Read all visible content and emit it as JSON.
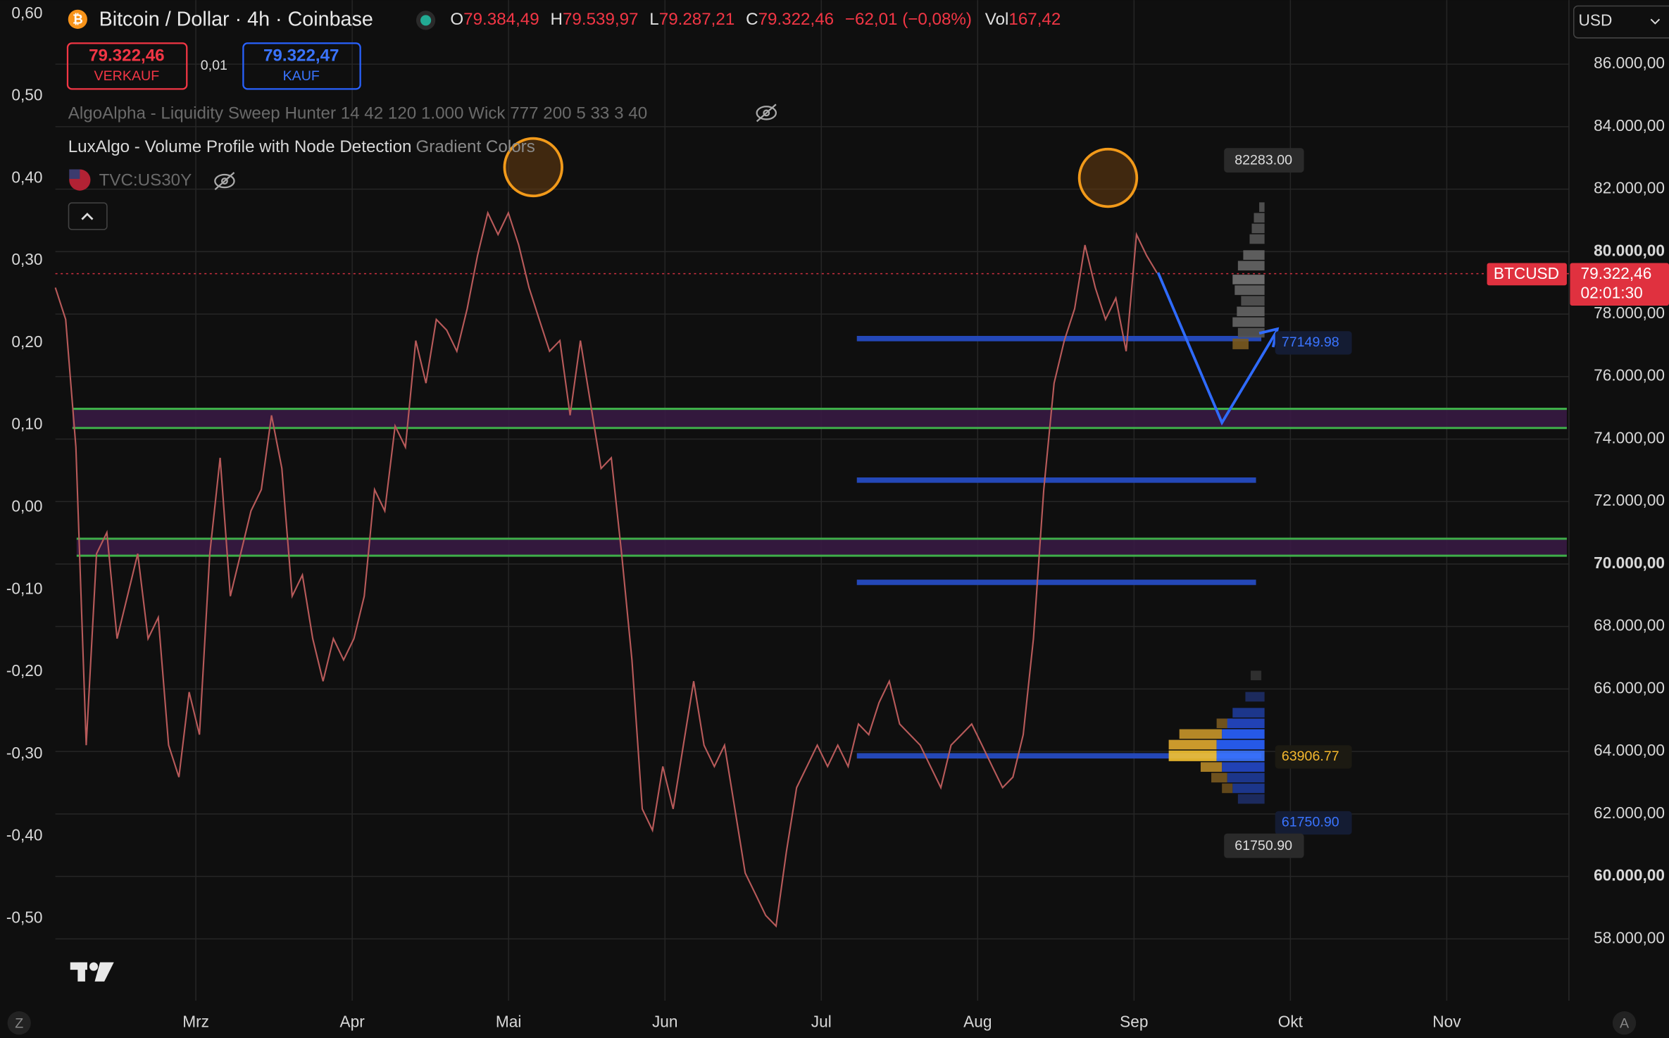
{
  "header": {
    "symbol": "Bitcoin / Dollar · 4h · Coinbase",
    "ohlc": [
      {
        "key": "O",
        "value": "79.384,49"
      },
      {
        "key": "H",
        "value": "79.539,97"
      },
      {
        "key": "L",
        "value": "79.287,21"
      },
      {
        "key": "C",
        "value": "79.322,46"
      }
    ],
    "change": "−62,01 (−0,08%)",
    "vol_label": "Vol",
    "vol": "167,42"
  },
  "trade": {
    "sell_price": "79.322,46",
    "sell_label": "VERKAUF",
    "spread": "0,01",
    "buy_price": "79.322,47",
    "buy_label": "KAUF"
  },
  "indicators": {
    "algoalpha": "AlgoAlpha - Liquidity Sweep Hunter 14 42 120 1.000 Wick 777 200 5 33 3 40",
    "luxalgo": "LuxAlgo - Volume Profile with Node Detection",
    "luxalgo_setting": "Gradient Colors",
    "compare": "TVC:US30Y"
  },
  "currency": "USD",
  "price_axis": {
    "ylim": [
      56000,
      88000
    ],
    "yticks": [
      {
        "value": 58000,
        "label": "58.000,00"
      },
      {
        "value": 60000,
        "label": "60.000,00"
      },
      {
        "value": 62000,
        "label": "62.000,00"
      },
      {
        "value": 64000,
        "label": "64.000,00"
      },
      {
        "value": 66000,
        "label": "66.000,00"
      },
      {
        "value": 68000,
        "label": "68.000,00"
      },
      {
        "value": 70000,
        "label": "70.000,00"
      },
      {
        "value": 72000,
        "label": "72.000,00"
      },
      {
        "value": 74000,
        "label": "74.000,00"
      },
      {
        "value": 76000,
        "label": "76.000,00"
      },
      {
        "value": 78000,
        "label": "78.000,00"
      },
      {
        "value": 80000,
        "label": "80.000,00"
      },
      {
        "value": 82000,
        "label": "82.000,00"
      },
      {
        "value": 84000,
        "label": "84.000,00"
      },
      {
        "value": 86000,
        "label": "86.000,00"
      }
    ]
  },
  "left_axis": {
    "labels": [
      "0,60",
      "0,50",
      "0,40",
      "0,30",
      "0,20",
      "0,10",
      "0,00",
      "-0,10",
      "-0,20",
      "-0,30",
      "-0,40",
      "-0,50"
    ]
  },
  "time_axis": {
    "labels": [
      "Mrz",
      "Apr",
      "Mai",
      "Jun",
      "Jul",
      "Aug",
      "Sep",
      "Okt",
      "Nov"
    ]
  },
  "price_tag": {
    "symbol": "BTCUSD",
    "price": "79.322,46",
    "countdown": "02:01:30"
  },
  "profile_labels": {
    "top": "82283.00",
    "poc_upper": "77149.98",
    "poc": "63906.77",
    "low_blue": "61750.90",
    "low_box": "61750.90"
  },
  "bottom_icons": {
    "left": "Z",
    "right": "A"
  },
  "price_series": {
    "values": [
      78850,
      77830,
      73740,
      64200,
      70330,
      71010,
      67610,
      68970,
      70330,
      67610,
      68290,
      64200,
      63180,
      65900,
      64540,
      70330,
      73400,
      68970,
      70330,
      71700,
      72380,
      74760,
      73060,
      68970,
      69650,
      67610,
      66250,
      67610,
      66930,
      67610,
      68970,
      72380,
      71700,
      74420,
      73740,
      77150,
      75790,
      77830,
      77490,
      76810,
      78170,
      79870,
      81240,
      80550,
      81240,
      80210,
      78850,
      77830,
      76810,
      77150,
      74760,
      77150,
      75100,
      73060,
      73400,
      70330,
      66930,
      62160,
      61480,
      63520,
      62160,
      64200,
      66250,
      64200,
      63520,
      64200,
      62160,
      60110,
      59430,
      58750,
      58410,
      60790,
      62840,
      63520,
      64200,
      63520,
      64200,
      63520,
      64880,
      64540,
      65560,
      66250,
      64880,
      64540,
      64200,
      63520,
      62840,
      64200,
      64540,
      64880,
      64200,
      63520,
      62840,
      63180,
      64540,
      67610,
      72380,
      75790,
      77150,
      78170,
      80210,
      78850,
      77830,
      78510,
      76810,
      80550,
      79870,
      79320
    ]
  }
}
